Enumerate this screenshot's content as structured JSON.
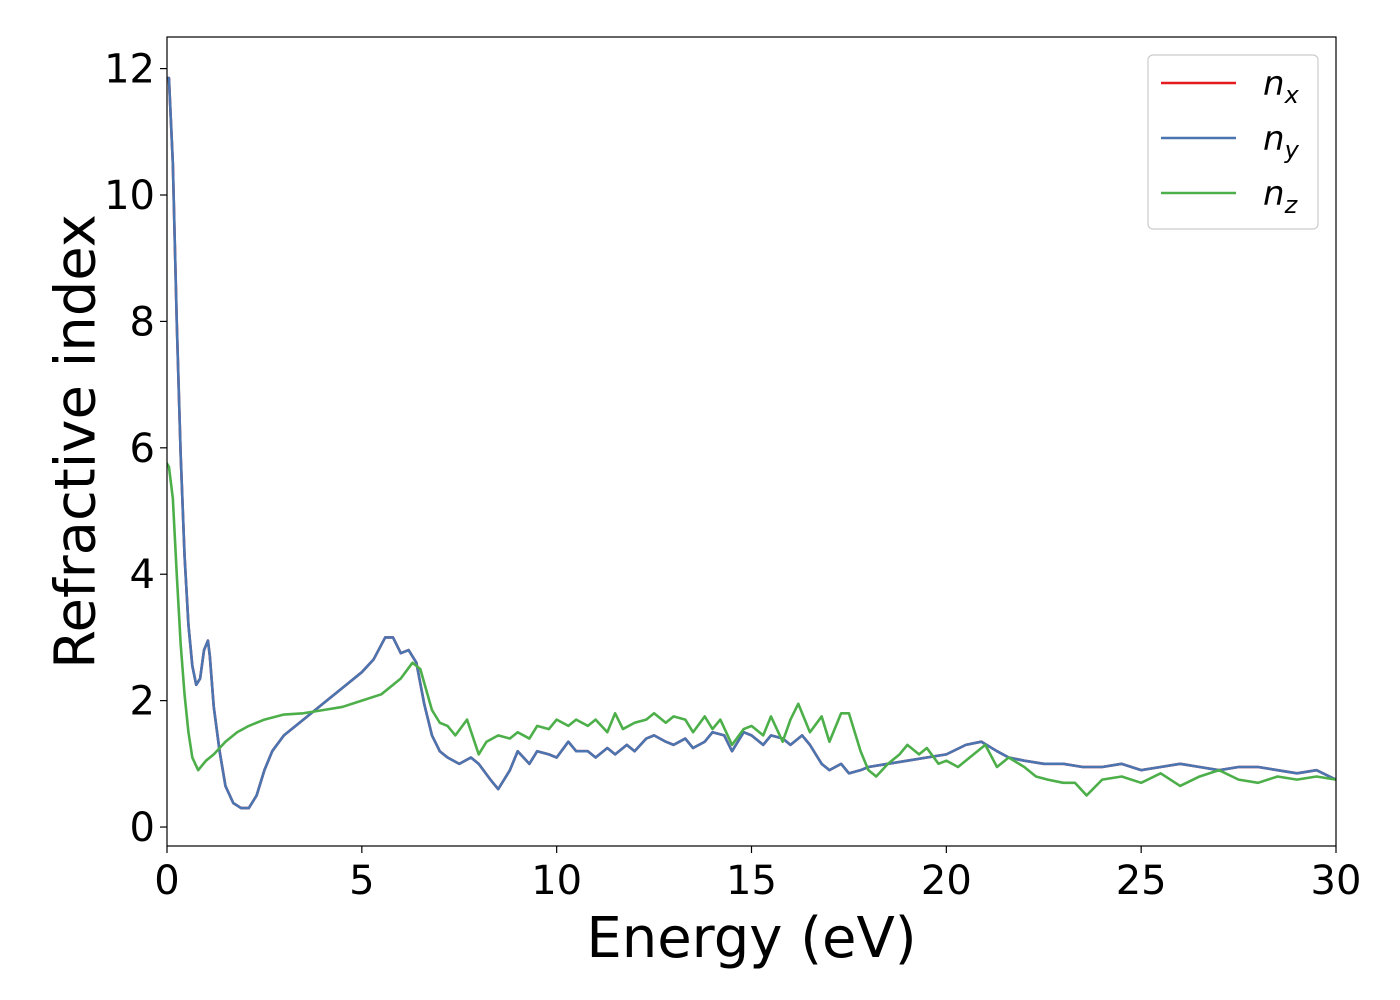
{
  "chart_data": {
    "type": "line",
    "title": "",
    "xlabel": "Energy (eV)",
    "ylabel": "Refractive index",
    "xlim": [
      0,
      30
    ],
    "ylim": [
      -0.3,
      12.5
    ],
    "xticks": [
      0,
      5,
      10,
      15,
      20,
      25,
      30
    ],
    "yticks": [
      0,
      2,
      4,
      6,
      8,
      10,
      12
    ],
    "grid": false,
    "legend_position": "top-right",
    "series": [
      {
        "name": "n",
        "subscript": "x",
        "color": "#e41a1c",
        "x": [
          0,
          0.05,
          0.15,
          0.25,
          0.35,
          0.45,
          0.55,
          0.65,
          0.75,
          0.85,
          0.95,
          1.05,
          1.1,
          1.2,
          1.35,
          1.5,
          1.7,
          1.9,
          2.1,
          2.3,
          2.5,
          2.7,
          3.0,
          3.5,
          4.0,
          4.5,
          5.0,
          5.3,
          5.6,
          5.8,
          6.0,
          6.2,
          6.4,
          6.6,
          6.8,
          7.0,
          7.2,
          7.5,
          7.8,
          8.0,
          8.3,
          8.5,
          8.8,
          9.0,
          9.3,
          9.5,
          9.8,
          10.0,
          10.3,
          10.5,
          10.8,
          11.0,
          11.3,
          11.5,
          11.8,
          12.0,
          12.3,
          12.5,
          12.8,
          13.0,
          13.3,
          13.5,
          13.8,
          14.0,
          14.3,
          14.5,
          14.8,
          15.0,
          15.3,
          15.5,
          15.8,
          16.0,
          16.3,
          16.5,
          16.8,
          17.0,
          17.3,
          17.5,
          17.8,
          18.0,
          18.5,
          19.0,
          19.5,
          20.0,
          20.5,
          20.9,
          21.3,
          21.6,
          22.0,
          22.5,
          23.0,
          23.5,
          24.0,
          24.5,
          25.0,
          25.5,
          26.0,
          26.5,
          27.0,
          27.5,
          28.0,
          28.5,
          29.0,
          29.5,
          30.0
        ],
        "y": [
          11.85,
          11.85,
          10.5,
          8.0,
          5.9,
          4.3,
          3.2,
          2.55,
          2.25,
          2.35,
          2.8,
          2.95,
          2.7,
          1.9,
          1.2,
          0.65,
          0.38,
          0.3,
          0.3,
          0.5,
          0.9,
          1.2,
          1.45,
          1.7,
          1.95,
          2.2,
          2.45,
          2.65,
          3.0,
          3.0,
          2.75,
          2.8,
          2.6,
          1.95,
          1.45,
          1.2,
          1.1,
          1.0,
          1.1,
          1.0,
          0.75,
          0.6,
          0.9,
          1.2,
          1.0,
          1.2,
          1.15,
          1.1,
          1.35,
          1.2,
          1.2,
          1.1,
          1.25,
          1.15,
          1.3,
          1.2,
          1.4,
          1.45,
          1.35,
          1.3,
          1.4,
          1.25,
          1.35,
          1.5,
          1.45,
          1.2,
          1.5,
          1.45,
          1.3,
          1.45,
          1.4,
          1.3,
          1.45,
          1.3,
          1.0,
          0.9,
          1.0,
          0.85,
          0.9,
          0.95,
          1.0,
          1.05,
          1.1,
          1.15,
          1.3,
          1.35,
          1.2,
          1.1,
          1.05,
          1.0,
          1.0,
          0.95,
          0.95,
          1.0,
          0.9,
          0.95,
          1.0,
          0.95,
          0.9,
          0.95,
          0.95,
          0.9,
          0.85,
          0.9,
          0.75
        ]
      },
      {
        "name": "n",
        "subscript": "y",
        "color": "#4a75b0",
        "x": [
          0,
          0.05,
          0.15,
          0.25,
          0.35,
          0.45,
          0.55,
          0.65,
          0.75,
          0.85,
          0.95,
          1.05,
          1.1,
          1.2,
          1.35,
          1.5,
          1.7,
          1.9,
          2.1,
          2.3,
          2.5,
          2.7,
          3.0,
          3.5,
          4.0,
          4.5,
          5.0,
          5.3,
          5.6,
          5.8,
          6.0,
          6.2,
          6.4,
          6.6,
          6.8,
          7.0,
          7.2,
          7.5,
          7.8,
          8.0,
          8.3,
          8.5,
          8.8,
          9.0,
          9.3,
          9.5,
          9.8,
          10.0,
          10.3,
          10.5,
          10.8,
          11.0,
          11.3,
          11.5,
          11.8,
          12.0,
          12.3,
          12.5,
          12.8,
          13.0,
          13.3,
          13.5,
          13.8,
          14.0,
          14.3,
          14.5,
          14.8,
          15.0,
          15.3,
          15.5,
          15.8,
          16.0,
          16.3,
          16.5,
          16.8,
          17.0,
          17.3,
          17.5,
          17.8,
          18.0,
          18.5,
          19.0,
          19.5,
          20.0,
          20.5,
          20.9,
          21.3,
          21.6,
          22.0,
          22.5,
          23.0,
          23.5,
          24.0,
          24.5,
          25.0,
          25.5,
          26.0,
          26.5,
          27.0,
          27.5,
          28.0,
          28.5,
          29.0,
          29.5,
          30.0
        ],
        "y": [
          11.85,
          11.85,
          10.5,
          8.0,
          5.9,
          4.3,
          3.2,
          2.55,
          2.25,
          2.35,
          2.8,
          2.95,
          2.7,
          1.9,
          1.2,
          0.65,
          0.38,
          0.3,
          0.3,
          0.5,
          0.9,
          1.2,
          1.45,
          1.7,
          1.95,
          2.2,
          2.45,
          2.65,
          3.0,
          3.0,
          2.75,
          2.8,
          2.6,
          1.95,
          1.45,
          1.2,
          1.1,
          1.0,
          1.1,
          1.0,
          0.75,
          0.6,
          0.9,
          1.2,
          1.0,
          1.2,
          1.15,
          1.1,
          1.35,
          1.2,
          1.2,
          1.1,
          1.25,
          1.15,
          1.3,
          1.2,
          1.4,
          1.45,
          1.35,
          1.3,
          1.4,
          1.25,
          1.35,
          1.5,
          1.45,
          1.2,
          1.5,
          1.45,
          1.3,
          1.45,
          1.4,
          1.3,
          1.45,
          1.3,
          1.0,
          0.9,
          1.0,
          0.85,
          0.9,
          0.95,
          1.0,
          1.05,
          1.1,
          1.15,
          1.3,
          1.35,
          1.2,
          1.1,
          1.05,
          1.0,
          1.0,
          0.95,
          0.95,
          1.0,
          0.9,
          0.95,
          1.0,
          0.95,
          0.9,
          0.95,
          0.95,
          0.9,
          0.85,
          0.9,
          0.75
        ]
      },
      {
        "name": "n",
        "subscript": "z",
        "color": "#4daf4a",
        "x": [
          0,
          0.05,
          0.15,
          0.25,
          0.35,
          0.45,
          0.55,
          0.65,
          0.8,
          1.0,
          1.2,
          1.5,
          1.8,
          2.1,
          2.5,
          3.0,
          3.5,
          4.0,
          4.5,
          5.0,
          5.5,
          6.0,
          6.3,
          6.5,
          6.8,
          7.0,
          7.2,
          7.4,
          7.7,
          8.0,
          8.2,
          8.5,
          8.8,
          9.0,
          9.3,
          9.5,
          9.8,
          10.0,
          10.3,
          10.5,
          10.8,
          11.0,
          11.3,
          11.5,
          11.7,
          12.0,
          12.3,
          12.5,
          12.8,
          13.0,
          13.3,
          13.5,
          13.8,
          14.0,
          14.2,
          14.5,
          14.8,
          15.0,
          15.3,
          15.5,
          15.8,
          16.0,
          16.2,
          16.5,
          16.8,
          17.0,
          17.3,
          17.5,
          17.8,
          18.0,
          18.2,
          18.5,
          18.8,
          19.0,
          19.3,
          19.5,
          19.8,
          20.0,
          20.3,
          20.6,
          21.0,
          21.3,
          21.6,
          22.0,
          22.3,
          22.6,
          23.0,
          23.3,
          23.6,
          24.0,
          24.5,
          25.0,
          25.5,
          26.0,
          26.5,
          27.0,
          27.5,
          28.0,
          28.5,
          29.0,
          29.5,
          30.0
        ],
        "y": [
          5.75,
          5.7,
          5.2,
          4.0,
          2.9,
          2.1,
          1.5,
          1.1,
          0.9,
          1.05,
          1.15,
          1.35,
          1.5,
          1.6,
          1.7,
          1.78,
          1.8,
          1.85,
          1.9,
          2.0,
          2.1,
          2.35,
          2.6,
          2.5,
          1.85,
          1.65,
          1.6,
          1.45,
          1.7,
          1.15,
          1.35,
          1.45,
          1.4,
          1.5,
          1.4,
          1.6,
          1.55,
          1.7,
          1.6,
          1.7,
          1.6,
          1.7,
          1.5,
          1.8,
          1.55,
          1.65,
          1.7,
          1.8,
          1.65,
          1.75,
          1.7,
          1.5,
          1.75,
          1.55,
          1.7,
          1.3,
          1.55,
          1.6,
          1.45,
          1.75,
          1.35,
          1.7,
          1.95,
          1.5,
          1.75,
          1.35,
          1.8,
          1.8,
          1.2,
          0.9,
          0.8,
          1.0,
          1.15,
          1.3,
          1.15,
          1.25,
          1.0,
          1.05,
          0.95,
          1.1,
          1.3,
          0.95,
          1.1,
          0.95,
          0.8,
          0.75,
          0.7,
          0.7,
          0.5,
          0.75,
          0.8,
          0.7,
          0.85,
          0.65,
          0.8,
          0.9,
          0.75,
          0.7,
          0.8,
          0.75,
          0.8,
          0.75
        ]
      }
    ]
  }
}
